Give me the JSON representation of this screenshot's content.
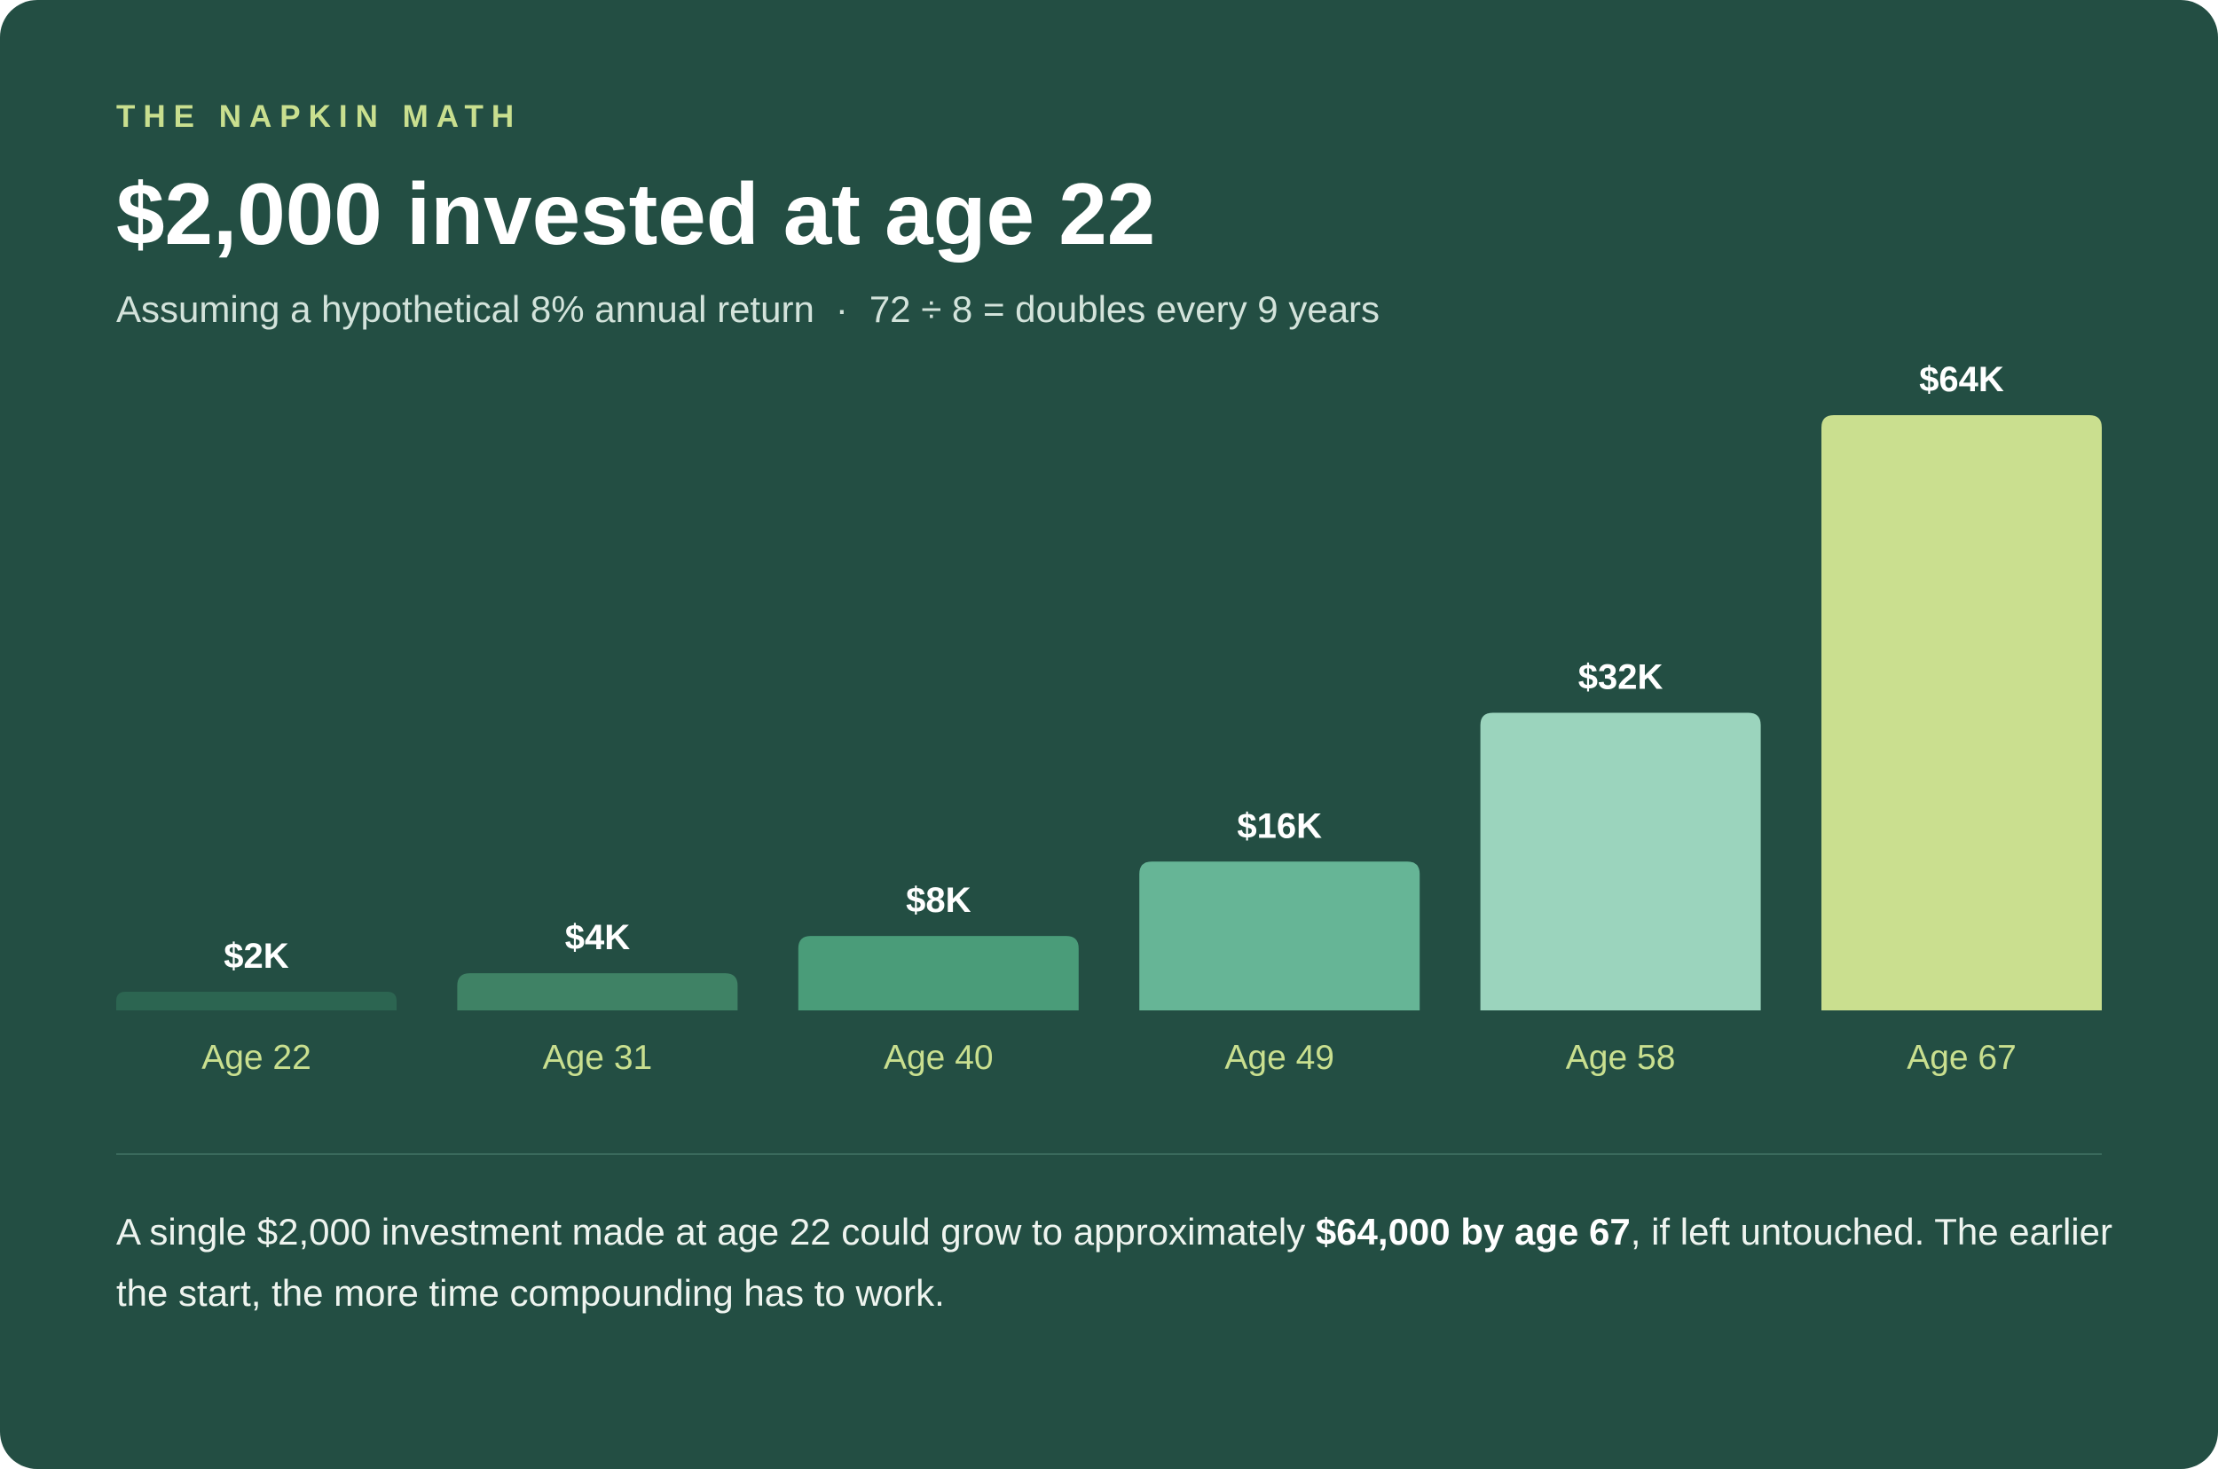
{
  "header": {
    "eyebrow": "THE NAPKIN MATH",
    "title": "$2,000 invested at age 22",
    "subtitle_assumption": "Assuming a hypothetical 8% annual return",
    "subtitle_separator": "·",
    "subtitle_rule": "72 ÷ 8 = doubles every 9 years"
  },
  "chart_data": {
    "type": "bar",
    "title": "",
    "xlabel": "",
    "ylabel": "",
    "categories": [
      "Age 22",
      "Age 31",
      "Age 40",
      "Age 49",
      "Age 58",
      "Age 67"
    ],
    "values": [
      2000,
      4000,
      8000,
      16000,
      32000,
      64000
    ],
    "data_labels": [
      "$2K",
      "$4K",
      "$8K",
      "$16K",
      "$32K",
      "$64K"
    ],
    "ylim": [
      0,
      64000
    ],
    "grid": false,
    "legend": "none",
    "bar_colors": [
      "#2c6551",
      "#3f8265",
      "#4a9c79",
      "#66b596",
      "#9bd4bd",
      "#cadf8f"
    ]
  },
  "footer": {
    "caption_before": "A single $2,000 investment made at age 22 could grow to approximately ",
    "caption_bold": "$64,000 by age 67",
    "caption_after": ", if left untouched. The earlier the start, the more time compounding has to work."
  },
  "colors": {
    "background": "#234e43",
    "accent": "#c9df8f",
    "text": "#ffffff",
    "divider": "#3a6a5c"
  }
}
